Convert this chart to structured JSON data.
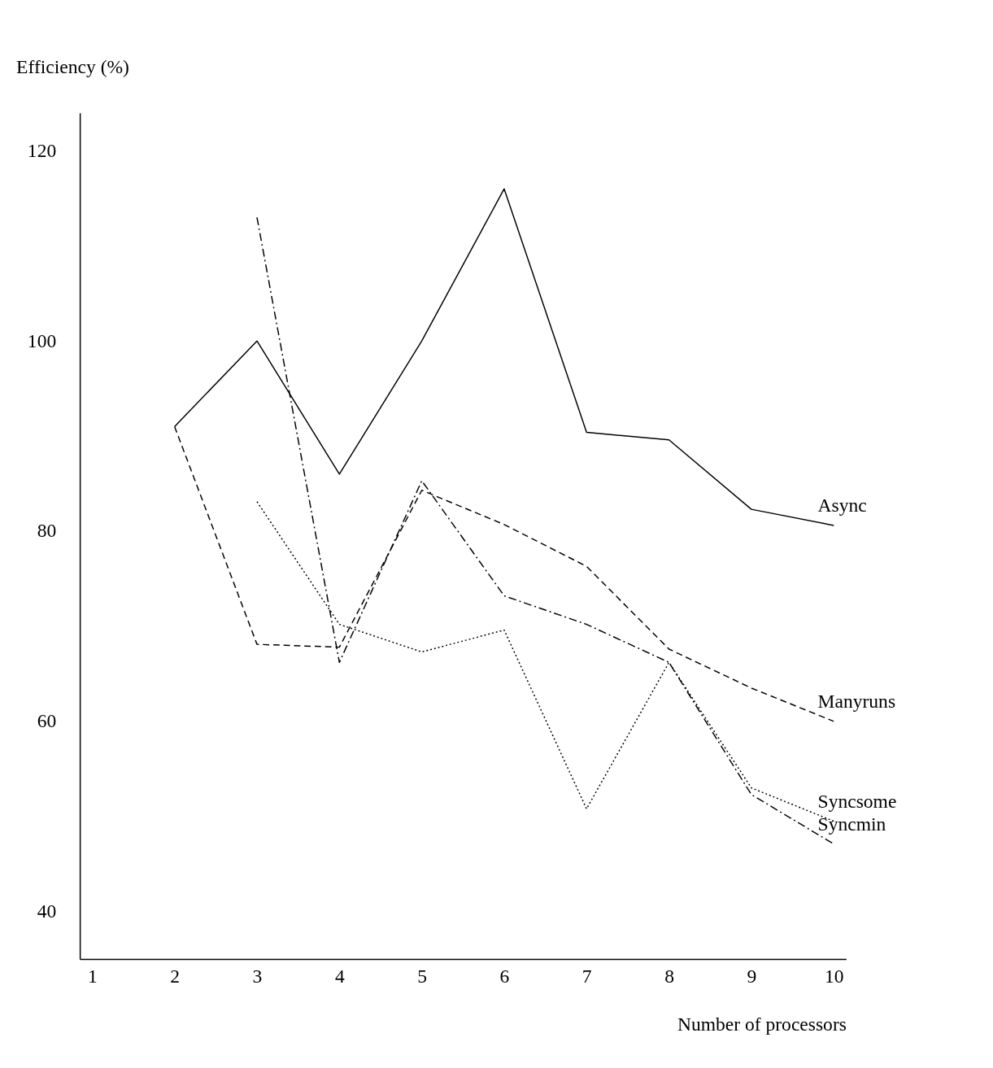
{
  "chart_data": {
    "type": "line",
    "xlabel": "Number of processors",
    "ylabel": "Efficiency (%)",
    "xlim": [
      0.85,
      10.15
    ],
    "xticks": [
      1,
      2,
      3,
      4,
      5,
      6,
      7,
      8,
      9,
      10
    ],
    "ylim": [
      35,
      124
    ],
    "yticks": [
      40,
      60,
      80,
      100,
      120
    ],
    "grid": false,
    "legend": false,
    "marker": "none",
    "series": [
      {
        "name": "Async",
        "color": "#000000",
        "line_style": "solid",
        "x": [
          2,
          3,
          4,
          5,
          6,
          7,
          8,
          9,
          10
        ],
        "values": [
          91,
          100,
          86,
          100,
          116,
          90.4,
          89.6,
          82.3,
          80.6
        ]
      },
      {
        "name": "Manyruns",
        "color": "#000000",
        "line_style": "dashed",
        "x": [
          2,
          3,
          4,
          5,
          6,
          7,
          8,
          9,
          10
        ],
        "values": [
          91,
          68.1,
          67.8,
          84.3,
          80.7,
          76.3,
          67.6,
          63.5,
          60
        ]
      },
      {
        "name": "Syncsome",
        "color": "#000000",
        "line_style": "dotted",
        "x": [
          3,
          4,
          5,
          6,
          7,
          8,
          9,
          10
        ],
        "values": [
          83.1,
          70.2,
          67.3,
          69.6,
          50.8,
          66.2,
          53,
          49.5
        ]
      },
      {
        "name": "Syncmin",
        "color": "#000000",
        "line_style": "dashdot",
        "x": [
          3,
          4,
          5,
          6,
          7,
          8,
          9,
          10
        ],
        "values": [
          113,
          66.2,
          85.3,
          73.2,
          70.2,
          66.2,
          52.3,
          47.1
        ]
      }
    ]
  }
}
